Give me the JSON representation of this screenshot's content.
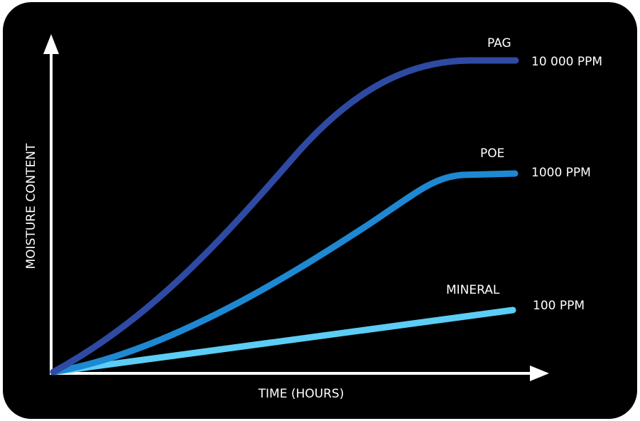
{
  "chart_data": {
    "type": "line",
    "title": "",
    "xlabel": "TIME (HOURS)",
    "ylabel": "MOISTURE CONTENT",
    "colors": {
      "background": "#000000",
      "axes": "#ffffff",
      "text": "#ffffff"
    },
    "series": [
      {
        "name": "PAG",
        "end_label": "10 000 PPM",
        "color": "#2f4aa3"
      },
      {
        "name": "POE",
        "end_label": "1000 PPM",
        "color": "#1e88d2"
      },
      {
        "name": "MINERAL",
        "end_label": "100 PPM",
        "color": "#5ccdf5"
      }
    ]
  }
}
